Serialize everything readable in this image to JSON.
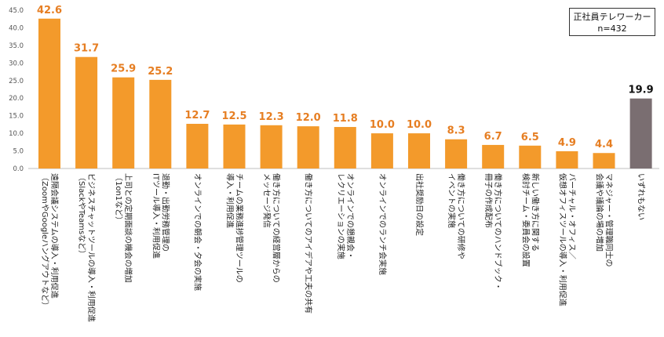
{
  "chart_data": {
    "type": "bar",
    "categories": [
      {
        "lines": [
          "遠隔会議システムの導入・利用促進",
          "（ZoomやGoogleハングアウトなど）"
        ]
      },
      {
        "lines": [
          "ビジネスチャットツールの導入・利用促進",
          "（SlackやTeamsなど）"
        ]
      },
      {
        "lines": [
          "上司との定期面談の機会の増加",
          "（1on1など）"
        ]
      },
      {
        "lines": [
          "退勤・出勤労務管理の",
          "ITツール導入・利用促進"
        ]
      },
      {
        "lines": [
          "オンラインでの朝会・夕会の実施"
        ]
      },
      {
        "lines": [
          "チームの業務進捗管理ツールの",
          "導入・利用促進"
        ]
      },
      {
        "lines": [
          "働き方についての経営層からの",
          "メッセージ発信"
        ]
      },
      {
        "lines": [
          "働き方についてのアイデアや工夫の共有"
        ]
      },
      {
        "lines": [
          "オンラインでの懇親会・",
          "レクリエーションの実施"
        ]
      },
      {
        "lines": [
          "オンラインでのランチ会実施"
        ]
      },
      {
        "lines": [
          "出社奨励日の設定"
        ]
      },
      {
        "lines": [
          "働き方についての研修や",
          "イベントの実施"
        ]
      },
      {
        "lines": [
          "働き方についてのハンドブック・",
          "冊子の作成配布"
        ]
      },
      {
        "lines": [
          "新しい働き方に関する",
          "検討チーム・委員会の設置"
        ]
      },
      {
        "lines": [
          "バーチャル・オフィス／",
          "仮想オフィスツールの導入・利用促進"
        ]
      },
      {
        "lines": [
          "マネジャー・管理職同士の",
          "会議や議論の場の増加"
        ]
      },
      {
        "lines": [
          "いずれもない"
        ]
      }
    ],
    "values": [
      42.6,
      31.7,
      25.9,
      25.2,
      12.7,
      12.5,
      12.3,
      12.0,
      11.8,
      10.0,
      10.0,
      8.3,
      6.7,
      6.5,
      4.9,
      4.4,
      19.9
    ],
    "value_labels": [
      "42.6",
      "31.7",
      "25.9",
      "25.2",
      "12.7",
      "12.5",
      "12.3",
      "12.0",
      "11.8",
      "10.0",
      "10.0",
      "8.3",
      "6.7",
      "6.5",
      "4.9",
      "4.4",
      "19.9"
    ],
    "ylim": [
      0,
      45
    ],
    "yticks": [
      "0.0",
      "5.0",
      "10.0",
      "15.0",
      "20.0",
      "25.0",
      "30.0",
      "35.0",
      "40.0",
      "45.0"
    ],
    "colors": {
      "bar": "#f39a2b",
      "bar_last": "#7a6e71",
      "label": "#e67e22",
      "label_last": "#111111"
    },
    "legend": {
      "line1": "正社員テレワーカー",
      "line2": "n=432",
      "position": "top-right"
    }
  }
}
